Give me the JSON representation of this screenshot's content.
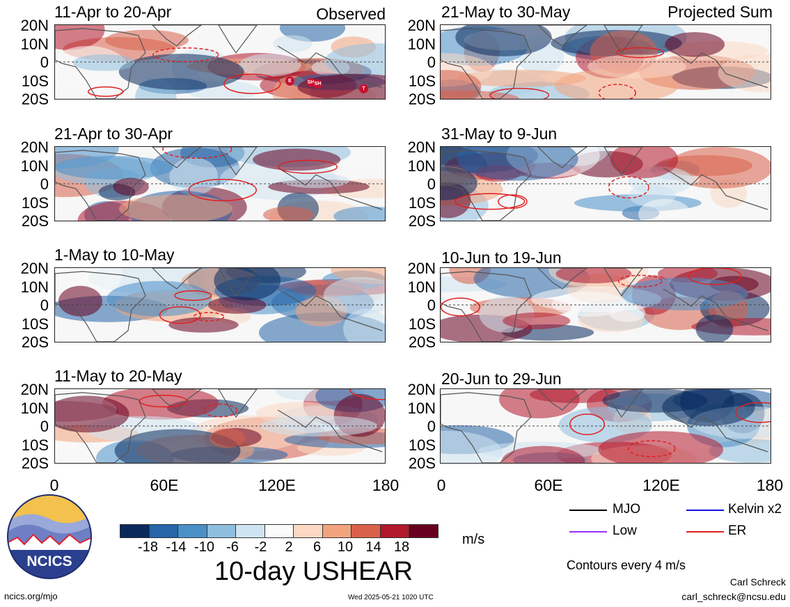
{
  "panels": [
    {
      "id": "p1",
      "title": "11-Apr to 20-Apr",
      "right_label": "Observed"
    },
    {
      "id": "p2",
      "title": "21-Apr to 30-Apr",
      "right_label": ""
    },
    {
      "id": "p3",
      "title": "1-May to 10-May",
      "right_label": ""
    },
    {
      "id": "p4",
      "title": "11-May to 20-May",
      "right_label": ""
    },
    {
      "id": "p5",
      "title": "21-May to 30-May",
      "right_label": "Projected Sum"
    },
    {
      "id": "p6",
      "title": "31-May to 9-Jun",
      "right_label": ""
    },
    {
      "id": "p7",
      "title": "10-Jun to 19-Jun",
      "right_label": ""
    },
    {
      "id": "p8",
      "title": "20-Jun to 29-Jun",
      "right_label": ""
    }
  ],
  "lat_labels": [
    "20N",
    "10N",
    "0",
    "10S",
    "20S"
  ],
  "lon_labels": [
    "0",
    "60E",
    "120E",
    "180"
  ],
  "storm_markers": [
    "E",
    "SH",
    "SH",
    "T"
  ],
  "colorbar": {
    "colors": [
      "#0a2a5c",
      "#2764a8",
      "#4a90c8",
      "#8fbfdf",
      "#cfe4f1",
      "#fafafa",
      "#fbd9c4",
      "#f2a47e",
      "#d9614a",
      "#b2182b",
      "#67001f"
    ],
    "ticks": [
      "-18",
      "-14",
      "-10",
      "-6",
      "-2",
      "2",
      "6",
      "10",
      "14",
      "18"
    ],
    "unit": "m/s"
  },
  "main_title": "10-day USHEAR",
  "legend": {
    "mjo": "MJO",
    "kelvin": "Kelvin x2",
    "low": "Low",
    "er": "ER",
    "mjo_color": "#000000",
    "kelvin_color": "#1010e0",
    "low_color": "#9b30ff",
    "er_color": "#e02020",
    "contours": "Contours every 4 m/s"
  },
  "logo_text": "NCICS",
  "footer": {
    "left": "ncics.org/mjo",
    "center": "Wed 2025-05-21 1020 UTC",
    "author": "Carl Schreck",
    "email": "carl_schreck@ncsu.edu"
  }
}
